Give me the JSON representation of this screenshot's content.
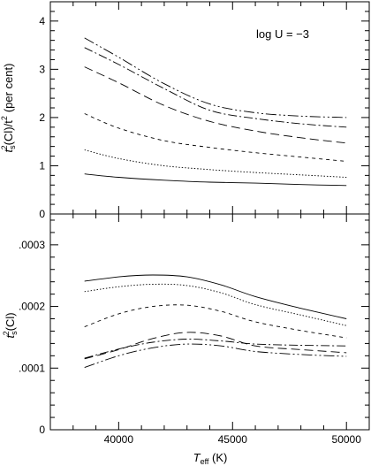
{
  "chart_data": [
    {
      "type": "line",
      "panel": "top",
      "annotation": "log U = −3",
      "ylabel_pre": "t",
      "ylabel_sub": "s",
      "ylabel_sup": "2",
      "ylabel_mid": "(Cl)/t",
      "ylabel_sup2": "2",
      "ylabel_post": "(per cent)",
      "xlim": [
        37000,
        51000
      ],
      "ylim": [
        0,
        4.4
      ],
      "yticks": [
        0,
        1,
        2,
        3,
        4
      ],
      "ytick_labels": [
        "0",
        "1",
        "2",
        "3",
        "4"
      ],
      "x": [
        38500,
        40000,
        42000,
        44000,
        46000,
        48000,
        50000
      ],
      "series": [
        {
          "style": "solid",
          "values": [
            0.83,
            0.76,
            0.7,
            0.66,
            0.64,
            0.61,
            0.59
          ]
        },
        {
          "style": "dotted",
          "values": [
            1.33,
            1.15,
            1.0,
            0.92,
            0.86,
            0.81,
            0.76
          ]
        },
        {
          "style": "dashed",
          "values": [
            2.08,
            1.78,
            1.52,
            1.38,
            1.27,
            1.18,
            1.09
          ]
        },
        {
          "style": "longdash",
          "values": [
            3.05,
            2.72,
            2.25,
            1.92,
            1.72,
            1.58,
            1.47
          ]
        },
        {
          "style": "dashdot",
          "values": [
            3.45,
            3.1,
            2.6,
            2.15,
            1.98,
            1.87,
            1.8
          ]
        },
        {
          "style": "dashdotdot",
          "values": [
            3.65,
            3.25,
            2.7,
            2.28,
            2.1,
            2.03,
            2.0
          ]
        }
      ]
    },
    {
      "type": "line",
      "panel": "bottom",
      "xlabel_pre": "T",
      "xlabel_sub": "eff",
      "xlabel_post": " (K)",
      "ylabel_pre": "t",
      "ylabel_sub": "s",
      "ylabel_sup": "2",
      "ylabel_post": "(Cl)",
      "xlim": [
        37000,
        51000
      ],
      "ylim": [
        0,
        0.00035
      ],
      "xticks": [
        40000,
        45000,
        50000
      ],
      "xtick_labels": [
        "40000",
        "45000",
        "50000"
      ],
      "yticks": [
        0,
        0.0001,
        0.0002,
        0.0003
      ],
      "ytick_labels": [
        "0",
        ".0001",
        ".0002",
        ".0003"
      ],
      "x": [
        38500,
        40000,
        41500,
        43000,
        44500,
        46000,
        48000,
        50000
      ],
      "series": [
        {
          "style": "solid",
          "values": [
            0.000241,
            0.000248,
            0.000251,
            0.000248,
            0.000235,
            0.000216,
            0.000197,
            0.00018
          ]
        },
        {
          "style": "dotted",
          "values": [
            0.000224,
            0.000232,
            0.000236,
            0.000234,
            0.000222,
            0.000203,
            0.000186,
            0.000169
          ]
        },
        {
          "style": "dashed",
          "values": [
            0.000167,
            0.000188,
            0.0002,
            0.000202,
            0.000192,
            0.000175,
            0.000161,
            0.000149
          ]
        },
        {
          "style": "longdash",
          "values": [
            0.000115,
            0.00013,
            0.000148,
            0.000158,
            0.000152,
            0.000136,
            0.00013,
            0.000125
          ]
        },
        {
          "style": "dashdot",
          "values": [
            0.000116,
            0.000131,
            0.000142,
            0.000147,
            0.000144,
            0.000139,
            0.000137,
            0.000136
          ]
        },
        {
          "style": "dashdotdot",
          "values": [
            0.000101,
            0.00012,
            0.000133,
            0.000139,
            0.000136,
            0.000127,
            0.000122,
            0.000119
          ]
        }
      ]
    }
  ]
}
